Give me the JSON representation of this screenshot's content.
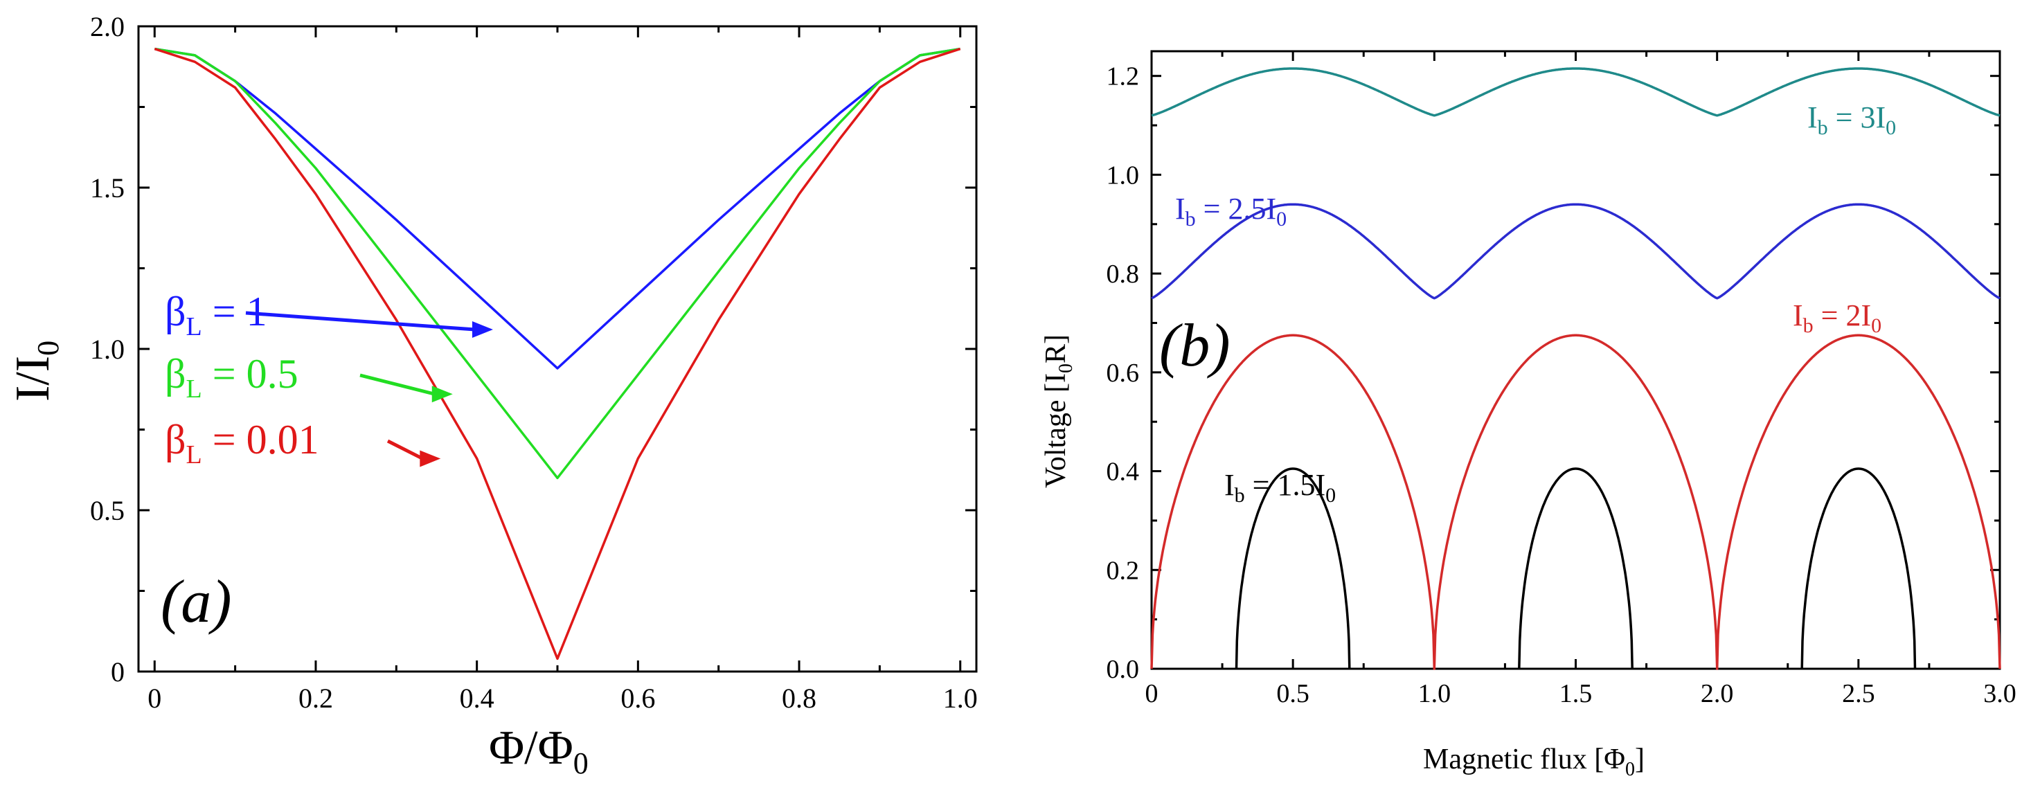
{
  "chart_data": [
    {
      "id": "a",
      "type": "line",
      "panel_label": "(a)",
      "xlabel": {
        "main": "Φ",
        "slash": "/",
        "base": "Φ",
        "sub": "0"
      },
      "ylabel": {
        "main": "I",
        "slash": "/",
        "base": "I",
        "sub": "0"
      },
      "xlim": [
        -0.02,
        1.02
      ],
      "ylim": [
        0,
        2.0
      ],
      "xticks": [
        0,
        0.2,
        0.4,
        0.6,
        0.8,
        1.0
      ],
      "xtick_labels": [
        "0",
        "0.2",
        "0.4",
        "0.6",
        "0.8",
        "1.0"
      ],
      "yticks": [
        0,
        0.5,
        1.0,
        1.5,
        2.0
      ],
      "ytick_labels": [
        "0",
        "0.5",
        "1.0",
        "1.5",
        "2.0"
      ],
      "series": [
        {
          "name": "βL = 1",
          "beta": 1,
          "color": "#1a1aff",
          "label_main": "β",
          "label_sub": "L",
          "label_value": " = 1",
          "x": [
            0,
            0.05,
            0.1,
            0.15,
            0.2,
            0.3,
            0.4,
            0.5,
            0.6,
            0.7,
            0.8,
            0.85,
            0.9,
            0.95,
            1.0
          ],
          "y": [
            1.93,
            1.91,
            1.83,
            1.73,
            1.62,
            1.4,
            1.17,
            0.94,
            1.17,
            1.4,
            1.62,
            1.73,
            1.83,
            1.91,
            1.93
          ]
        },
        {
          "name": "βL = 0.5",
          "beta": 0.5,
          "color": "#22dd22",
          "label_main": "β",
          "label_sub": "L",
          "label_value": " = 0.5",
          "x": [
            0,
            0.05,
            0.1,
            0.15,
            0.2,
            0.3,
            0.4,
            0.5,
            0.6,
            0.7,
            0.8,
            0.85,
            0.9,
            0.95,
            1.0
          ],
          "y": [
            1.93,
            1.91,
            1.83,
            1.7,
            1.56,
            1.24,
            0.92,
            0.6,
            0.92,
            1.24,
            1.56,
            1.7,
            1.83,
            1.91,
            1.93
          ]
        },
        {
          "name": "βL = 0.01",
          "beta": 0.01,
          "color": "#e01818",
          "label_main": "β",
          "label_sub": "L",
          "label_value": " = 0.01",
          "x": [
            0,
            0.05,
            0.1,
            0.15,
            0.2,
            0.3,
            0.4,
            0.5,
            0.6,
            0.7,
            0.8,
            0.85,
            0.9,
            0.95,
            1.0
          ],
          "y": [
            1.93,
            1.89,
            1.81,
            1.65,
            1.48,
            1.09,
            0.66,
            0.04,
            0.66,
            1.09,
            1.48,
            1.65,
            1.81,
            1.89,
            1.93
          ]
        }
      ],
      "annotations": [
        {
          "series": 0,
          "arrow_to": [
            0.42,
            1.06
          ]
        },
        {
          "series": 1,
          "arrow_to": [
            0.37,
            0.86
          ]
        },
        {
          "series": 2,
          "arrow_to": [
            0.355,
            0.66
          ]
        }
      ]
    },
    {
      "id": "b",
      "type": "line",
      "panel_label": "(b)",
      "xlabel": {
        "main": "Magnetic flux [Φ",
        "sub": "0",
        "end": "]"
      },
      "ylabel": {
        "main": "Voltage [I",
        "sub": "0",
        "end": "R]"
      },
      "xlim": [
        0,
        3.0
      ],
      "ylim": [
        0,
        1.25
      ],
      "xticks": [
        0,
        0.5,
        1.0,
        1.5,
        2.0,
        2.5,
        3.0
      ],
      "xtick_labels": [
        "0",
        "0.5",
        "1.0",
        "1.5",
        "2.0",
        "2.5",
        "3.0"
      ],
      "yticks": [
        0,
        0.2,
        0.4,
        0.6,
        0.8,
        1.0,
        1.2
      ],
      "ytick_labels": [
        "0.0",
        "0.2",
        "0.4",
        "0.6",
        "0.8",
        "1.0",
        "1.2"
      ],
      "series": [
        {
          "name": "Ib = 3I0",
          "ib": 3,
          "color": "#1f8a8a",
          "label_main": "I",
          "label_sub": "b",
          "label_value": " = 3I",
          "label_sub2": "0",
          "peak": 1.215,
          "valley": 1.12,
          "note": "periodic in flux, max at half-integer, min at integer"
        },
        {
          "name": "Ib = 2.5I0",
          "ib": 2.5,
          "color": "#2b2bd0",
          "label_main": "I",
          "label_sub": "b",
          "label_value": " = 2.5I",
          "label_sub2": "0",
          "peak": 0.94,
          "valley": 0.75,
          "note": "periodic in flux, max at half-integer, min at integer"
        },
        {
          "name": "Ib = 2I0",
          "ib": 2,
          "color": "#d42a2a",
          "label_main": "I",
          "label_sub": "b",
          "label_value": " = 2I",
          "label_sub2": "0",
          "peak": 0.675,
          "valley": 0.0,
          "note": "zero at integer flux, peak at half-integer"
        },
        {
          "name": "Ib = 1.5I0",
          "ib": 1.5,
          "color": "#000000",
          "label_main": "I",
          "label_sub": "b",
          "label_value": " = 1.5I",
          "label_sub2": "0",
          "peak": 0.405,
          "valley": 0.0,
          "onset_offset": 0.2,
          "note": "zero between n-0.3 and n+0.3, peak at half-integer"
        }
      ]
    }
  ]
}
